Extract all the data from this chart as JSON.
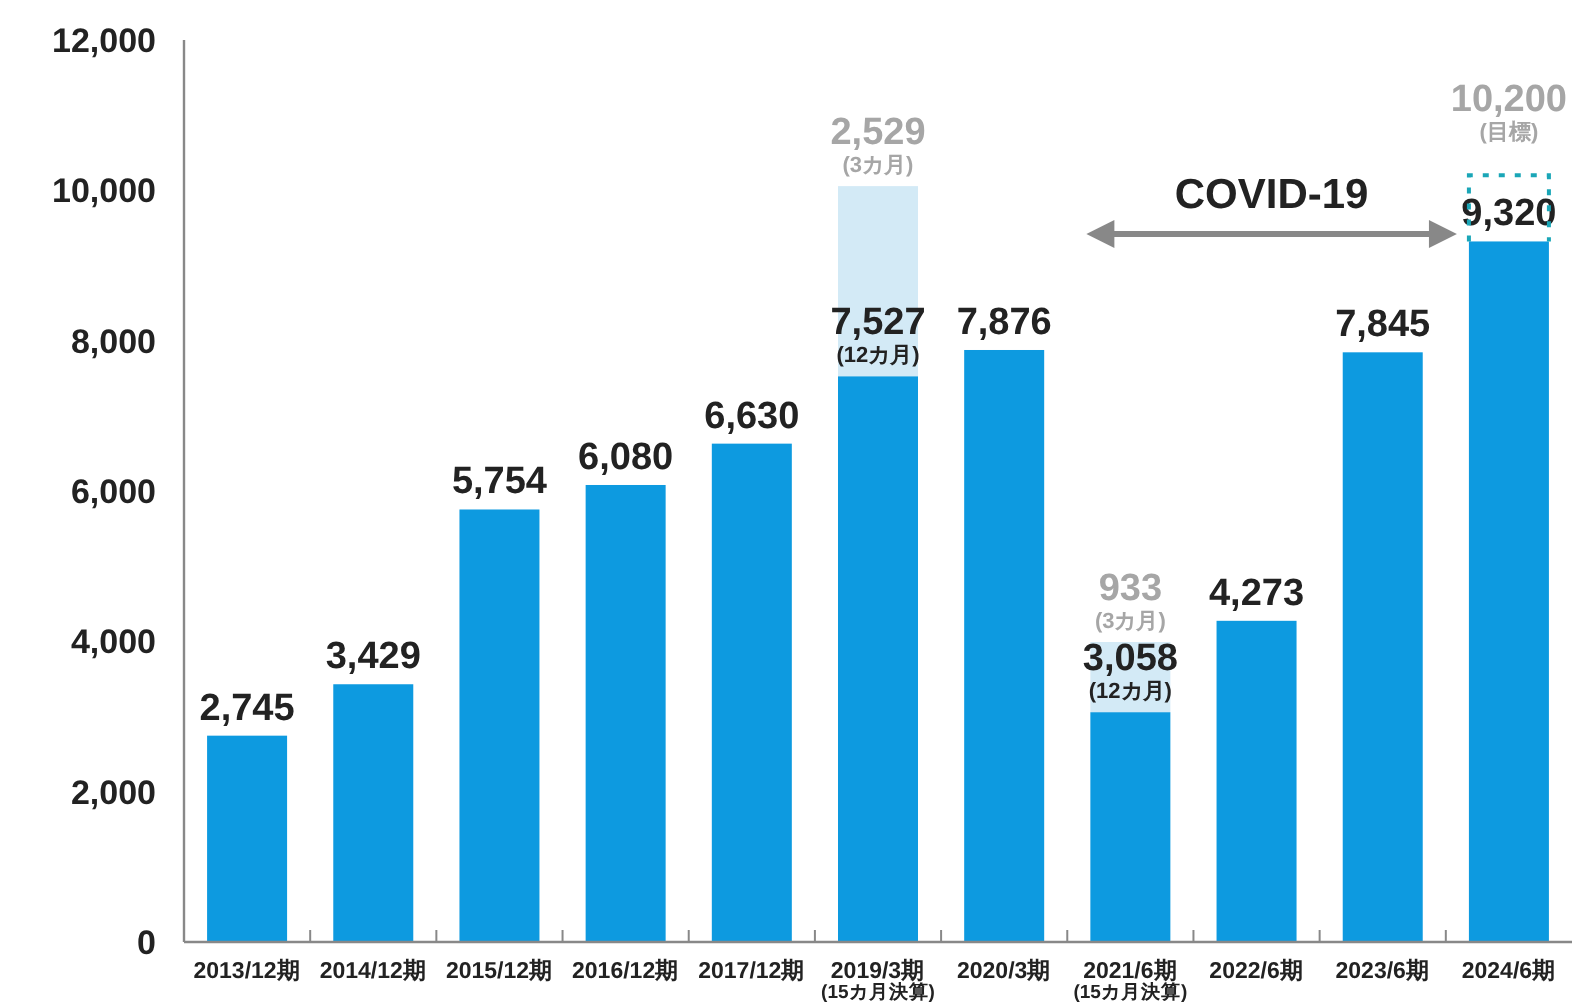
{
  "chart_data": {
    "type": "bar",
    "stacked": true,
    "categories": [
      "2013/12期",
      "2014/12期",
      "2015/12期",
      "2016/12期",
      "2017/12期",
      "2019/3期\n$_{(15カ月決算)}$",
      "2020/3期",
      "2021/6期\n$_{(15カ月決算)}$",
      "2022/6期",
      "2023/6期",
      "2024/6期"
    ],
    "series": [
      {
        "color": "#0d9ae0",
        "values": [
          2745,
          3429,
          5754,
          6080,
          6630,
          7527,
          7876,
          3058,
          4273,
          7845,
          9320
        ],
        "value_labels": [
          "2,745",
          "3,429",
          "5,754",
          "6,080",
          "6,630",
          "7,527\n$_{(12カ月)}$",
          "7,876",
          "3,058\n$_{(12カ月)}$",
          "4,273",
          "7,845",
          "9,320"
        ]
      },
      {
        "color": "#d3eaf6",
        "values": [
          null,
          null,
          null,
          null,
          null,
          2529,
          null,
          933,
          null,
          null,
          null
        ],
        "value_labels": [
          null,
          null,
          null,
          null,
          null,
          "2,529\n$_{(3カ月)}$",
          null,
          "933\n$_{(3カ月)}$",
          null,
          null,
          null
        ]
      }
    ],
    "ylim": [
      0,
      12000
    ],
    "yticks": [
      {
        "value": 0,
        "label": "0"
      },
      {
        "value": 2000,
        "label": "2,000"
      },
      {
        "value": 4000,
        "label": "4,000"
      },
      {
        "value": 6000,
        "label": "6,000"
      },
      {
        "value": 8000,
        "label": "8,000"
      },
      {
        "value": 10000,
        "label": "10,000"
      },
      {
        "value": 12000,
        "label": "12,000"
      }
    ],
    "grid": false,
    "ref_lines": [
      {
        "axis": "y",
        "value": 10200,
        "label": "10,200\n$_{(目標)}$",
        "color": "#1aa6b7",
        "line_style": "dotted"
      }
    ],
    "annotations": [
      "COVID-19"
    ]
  }
}
